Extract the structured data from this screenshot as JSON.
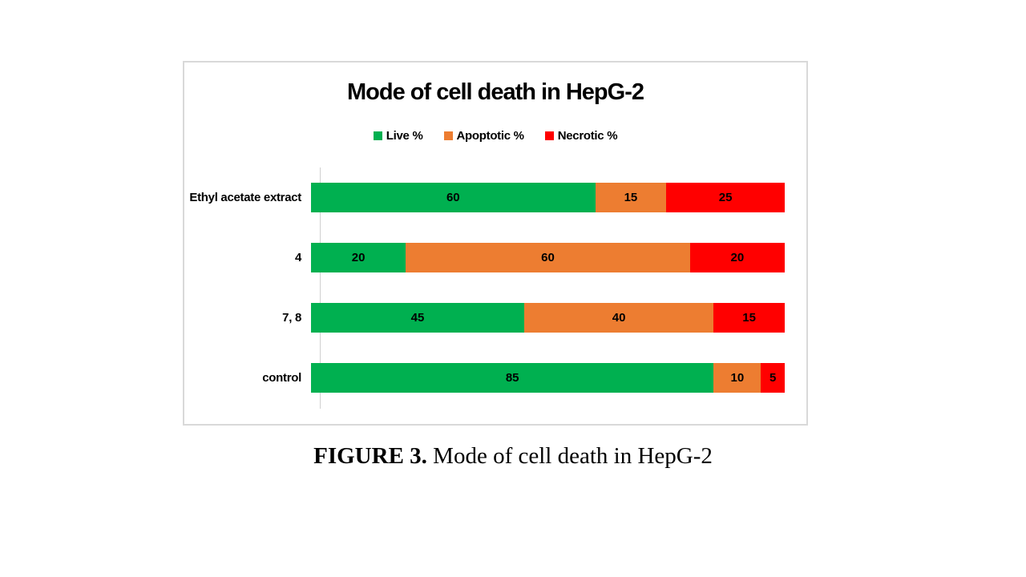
{
  "chart_data": {
    "type": "bar",
    "orientation": "horizontal-stacked",
    "title": "Mode of cell death in HepG-2",
    "categories": [
      "Ethyl acetate extract",
      "4",
      "7, 8",
      "control"
    ],
    "series": [
      {
        "name": "Live %",
        "color": "#00B050",
        "values": [
          60,
          20,
          45,
          85
        ]
      },
      {
        "name": "Apoptotic %",
        "color": "#ED7D31",
        "values": [
          15,
          60,
          40,
          10
        ]
      },
      {
        "name": "Necrotic %",
        "color": "#FF0000",
        "values": [
          25,
          20,
          15,
          5
        ]
      }
    ],
    "xlabel": "",
    "ylabel": "",
    "xlim": [
      0,
      100
    ],
    "grid": false,
    "legend_position": "top",
    "axis_line_color": "#d0d0d0",
    "border_color": "#d9d9d9"
  },
  "caption": {
    "label": "FIGURE 3.",
    "text": " Mode of cell death in HepG-2"
  }
}
